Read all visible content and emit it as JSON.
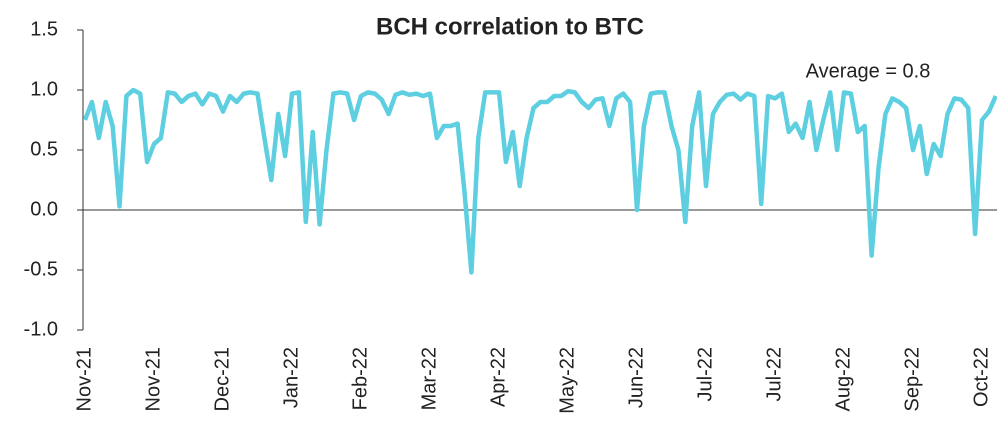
{
  "chart_data": {
    "type": "line",
    "title": "BCH correlation to BTC",
    "annotation": "Average = 0.8",
    "categories": [
      "Nov-21",
      null,
      null,
      null,
      null,
      null,
      null,
      null,
      null,
      null,
      "Nov-21",
      null,
      null,
      null,
      null,
      null,
      null,
      null,
      null,
      null,
      "Dec-21",
      null,
      null,
      null,
      null,
      null,
      null,
      null,
      null,
      null,
      "Jan-22",
      null,
      null,
      null,
      null,
      null,
      null,
      null,
      null,
      null,
      "Feb-22",
      null,
      null,
      null,
      null,
      null,
      null,
      null,
      null,
      null,
      "Mar-22",
      null,
      null,
      null,
      null,
      null,
      null,
      null,
      null,
      null,
      "Apr-22",
      null,
      null,
      null,
      null,
      null,
      null,
      null,
      null,
      null,
      "May-22",
      null,
      null,
      null,
      null,
      null,
      null,
      null,
      null,
      null,
      "Jun-22",
      null,
      null,
      null,
      null,
      null,
      null,
      null,
      null,
      null,
      "Jul-22",
      null,
      null,
      null,
      null,
      null,
      null,
      null,
      null,
      null,
      "Jul-22",
      null,
      null,
      null,
      null,
      null,
      null,
      null,
      null,
      null,
      "Aug-22",
      null,
      null,
      null,
      null,
      null,
      null,
      null,
      null,
      null,
      "Sep-22",
      null,
      null,
      null,
      null,
      null,
      null,
      null,
      null,
      null,
      "Oct-22",
      null,
      null
    ],
    "series": [
      {
        "name": "BCH correlation to BTC",
        "color": "#5dcfe0",
        "values": [
          0.75,
          0.9,
          0.6,
          0.9,
          0.7,
          0.03,
          0.95,
          1.0,
          0.97,
          0.4,
          0.55,
          0.6,
          0.98,
          0.97,
          0.9,
          0.95,
          0.97,
          0.88,
          0.97,
          0.95,
          0.82,
          0.95,
          0.9,
          0.97,
          0.98,
          0.97,
          0.6,
          0.25,
          0.8,
          0.45,
          0.97,
          0.98,
          -0.1,
          0.65,
          -0.12,
          0.5,
          0.97,
          0.98,
          0.97,
          0.75,
          0.95,
          0.98,
          0.97,
          0.92,
          0.8,
          0.96,
          0.98,
          0.96,
          0.97,
          0.95,
          0.97,
          0.6,
          0.7,
          0.7,
          0.72,
          0.15,
          -0.52,
          0.6,
          0.98,
          0.98,
          0.98,
          0.4,
          0.65,
          0.2,
          0.6,
          0.85,
          0.9,
          0.9,
          0.95,
          0.95,
          0.99,
          0.98,
          0.9,
          0.85,
          0.92,
          0.93,
          0.7,
          0.93,
          0.97,
          0.9,
          0.0,
          0.7,
          0.97,
          0.98,
          0.98,
          0.7,
          0.5,
          -0.1,
          0.7,
          0.98,
          0.2,
          0.8,
          0.9,
          0.96,
          0.97,
          0.92,
          0.97,
          0.95,
          0.05,
          0.95,
          0.93,
          0.97,
          0.65,
          0.72,
          0.6,
          0.9,
          0.5,
          0.75,
          0.98,
          0.5,
          0.98,
          0.97,
          0.65,
          0.7,
          -0.38,
          0.35,
          0.8,
          0.93,
          0.9,
          0.85,
          0.5,
          0.7,
          0.3,
          0.55,
          0.45,
          0.8,
          0.93,
          0.92,
          0.85,
          -0.2,
          0.75,
          0.82,
          0.95
        ]
      }
    ],
    "ylim": [
      -1.0,
      1.5
    ],
    "yticks": [
      {
        "value": -1.0,
        "label": "-1.0"
      },
      {
        "value": -0.5,
        "label": "-0.5"
      },
      {
        "value": 0.0,
        "label": "0.0"
      },
      {
        "value": 0.5,
        "label": "0.5"
      },
      {
        "value": 1.0,
        "label": "1.0"
      },
      {
        "value": 1.5,
        "label": "1.5"
      }
    ],
    "grid": false
  }
}
